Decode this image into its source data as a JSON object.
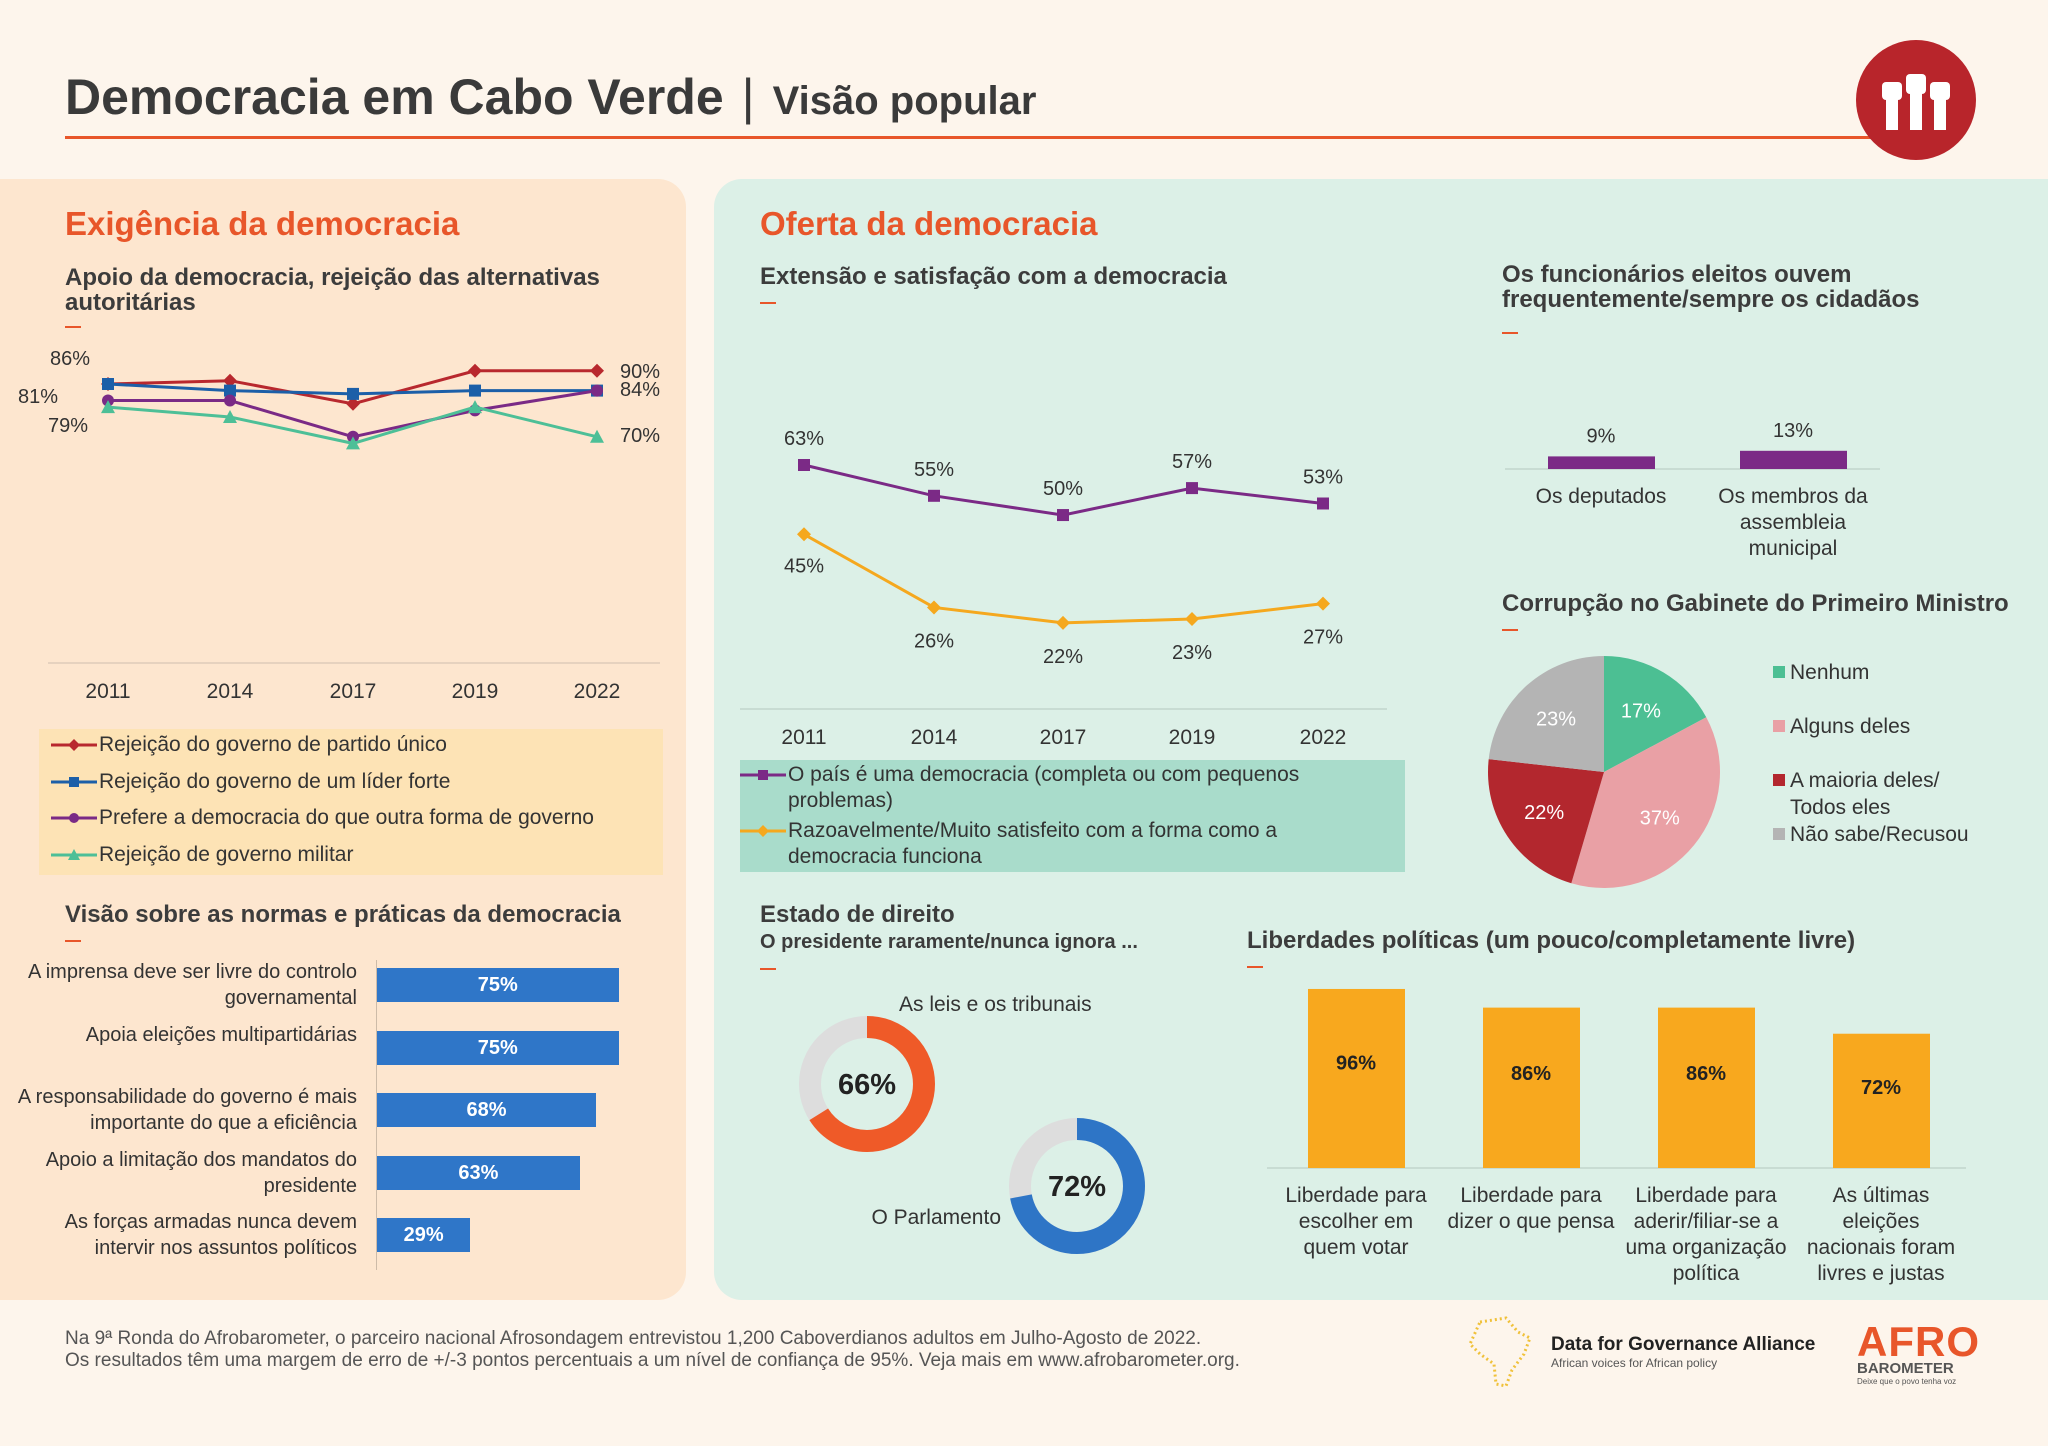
{
  "header": {
    "title": "Democracia em Cabo Verde",
    "separator": "|",
    "subtitle": "Visão popular",
    "logo_icon": "raised-fists-icon"
  },
  "left": {
    "heading": "Exigência da democracia",
    "chart1_title": "Apoio da democracia, rejeição das alternativas autoritárias",
    "chart2_title": "Visão sobre as normas e práticas da democracia"
  },
  "right": {
    "heading": "Oferta da democracia",
    "chart3_title": "Extensão e satisfação com a democracia",
    "chart4_title": "Os funcionários eleitos ouvem frequentemente/sempre os cidadãos",
    "chart5_title": "Corrupção no Gabinete do Primeiro Ministro",
    "chart6_title": "Estado de direito",
    "chart6_subtitle": "O presidente raramente/nunca ignora ...",
    "chart7_title": "Liberdades políticas (um pouco/completamente livre)"
  },
  "chart_data": [
    {
      "type": "line",
      "title": "Apoio da democracia, rejeição das alternativas autoritárias",
      "categories": [
        "2011",
        "2014",
        "2017",
        "2019",
        "2022"
      ],
      "series": [
        {
          "name": "Rejeição do governo de partido único",
          "color": "#b8282e",
          "marker": "diamond",
          "values": [
            86,
            87,
            80,
            90,
            90
          ]
        },
        {
          "name": "Rejeição do governo de um líder forte",
          "color": "#1c5fa8",
          "marker": "square",
          "values": [
            86,
            84,
            83,
            84,
            84
          ]
        },
        {
          "name": "Prefere a democracia do que outra forma de governo",
          "color": "#7a2a86",
          "marker": "circle",
          "values": [
            81,
            81,
            70,
            78,
            84
          ]
        },
        {
          "name": "Rejeição de governo militar",
          "color": "#4dbf97",
          "marker": "triangle",
          "values": [
            79,
            76,
            68,
            79,
            70
          ]
        }
      ],
      "labels": [
        {
          "text": "86%",
          "at": "2011",
          "side": "left"
        },
        {
          "text": "81%",
          "at": "2011",
          "side": "left"
        },
        {
          "text": "79%",
          "at": "2011",
          "side": "left"
        },
        {
          "text": "90%",
          "at": "2022",
          "side": "right"
        },
        {
          "text": "84%",
          "at": "2022",
          "side": "right"
        },
        {
          "text": "70%",
          "at": "2022",
          "side": "right"
        }
      ],
      "legend": "bottom"
    },
    {
      "type": "bar",
      "orientation": "horizontal",
      "title": "Visão sobre as normas e práticas da democracia",
      "categories": [
        "A imprensa deve ser livre do controlo governamental",
        "Apoia eleições multipartidárias",
        "A responsabilidade do governo é mais importante do que a eficiência",
        "Apoio a limitação dos mandatos do presidente",
        "As forças armadas nunca devem intervir nos assuntos políticos"
      ],
      "values": [
        75,
        75,
        68,
        63,
        29
      ],
      "data_labels": [
        "75%",
        "75%",
        "68%",
        "63%",
        "29%"
      ],
      "color": "#2f76c8"
    },
    {
      "type": "line",
      "title": "Extensão e satisfação com a democracia",
      "categories": [
        "2011",
        "2014",
        "2017",
        "2019",
        "2022"
      ],
      "series": [
        {
          "name": "O país é uma democracia (completa ou com pequenos problemas)",
          "color": "#7b2a86",
          "marker": "square",
          "values": [
            63,
            55,
            50,
            57,
            53
          ],
          "data_labels": [
            "63%",
            "55%",
            "50%",
            "57%",
            "53%"
          ]
        },
        {
          "name": "Razoavelmente/Muito satisfeito com a forma como a democracia funciona",
          "color": "#f5a81e",
          "marker": "diamond",
          "values": [
            45,
            26,
            22,
            23,
            27
          ],
          "data_labels": [
            "45%",
            "26%",
            "22%",
            "23%",
            "27%"
          ]
        }
      ],
      "legend": "bottom"
    },
    {
      "type": "bar",
      "title": "Os funcionários eleitos ouvem frequentemente/sempre os cidadãos",
      "categories": [
        "Os deputados",
        "Os membros da assembleia municipal"
      ],
      "values": [
        9,
        13
      ],
      "data_labels": [
        "9%",
        "13%"
      ],
      "color": "#7b2a86"
    },
    {
      "type": "pie",
      "title": "Corrupção no Gabinete do Primeiro Ministro",
      "categories": [
        "Nenhum",
        "Alguns deles",
        "A maioria deles/ Todos eles",
        "Não sabe/Recusou"
      ],
      "values": [
        17,
        37,
        22,
        23
      ],
      "data_labels": [
        "17%",
        "37%",
        "22%",
        "23%"
      ],
      "colors": [
        "#4cbf93",
        "#e9a0a5",
        "#b3272e",
        "#b4b4b4"
      ],
      "legend": "right"
    },
    {
      "type": "pie",
      "variant": "donut",
      "title": "Estado de direito",
      "subtitle": "O presidente raramente/nunca ignora ...",
      "categories": [
        "As leis e os tribunais",
        "O Parlamento"
      ],
      "values": [
        66,
        72
      ],
      "data_labels": [
        "66%",
        "72%"
      ],
      "colors": [
        "#ef5a28",
        "#2e75c6"
      ],
      "remainder_color": "#dddddd"
    },
    {
      "type": "bar",
      "title": "Liberdades políticas (um pouco/completamente livre)",
      "categories": [
        "Liberdade para escolher em quem votar",
        "Liberdade para dizer o que pensa",
        "Liberdade para aderir/filiar-se a uma organização política",
        "As últimas eleições nacionais foram livres e justas"
      ],
      "values": [
        96,
        86,
        86,
        72
      ],
      "data_labels": [
        "96%",
        "86%",
        "86%",
        "72%"
      ],
      "color": "#f8a81e"
    }
  ],
  "footer": {
    "line1": "Na 9ª Ronda do Afrobarometer, o parceiro nacional Afrosondagem entrevistou 1,200 Caboverdianos adultos em Julho-Agosto de 2022.",
    "line2": "Os resultados têm uma margem de erro de +/-3 pontos percentuais a um nível de confiança de 95%. Veja mais em www.afrobarometer.org.",
    "partner_name": "Data for Governance Alliance",
    "partner_tagline": "African voices for African policy",
    "brand_name": "AFRO",
    "brand_sub": "BAROMETER",
    "brand_tagline": "Deixe que o povo tenha voz"
  }
}
